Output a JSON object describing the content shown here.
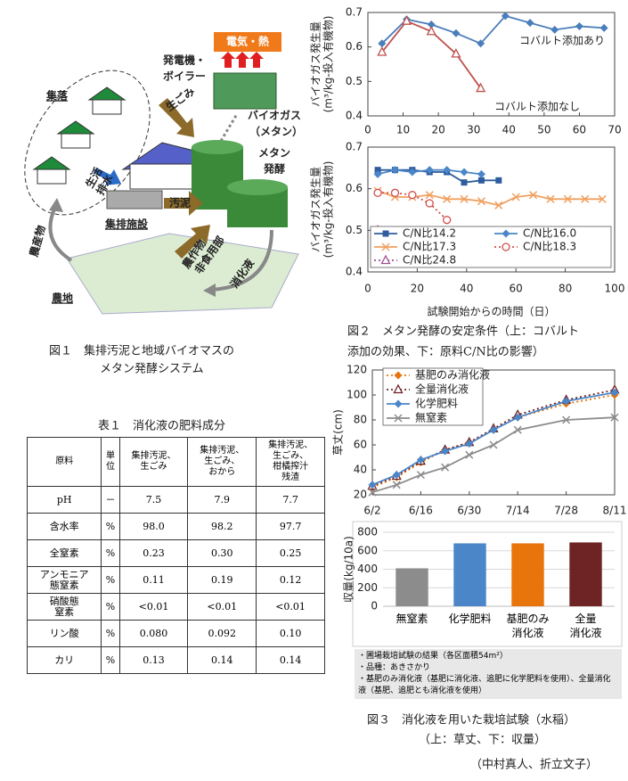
{
  "figure1": {
    "labels": [
      "集落",
      "電気・熱",
      "発電機・",
      "ボイラー",
      "生ごみ",
      "バイオガス",
      "（メタン）",
      "メタン",
      "発酵",
      "生活",
      "排水",
      "汚泥",
      "集排施設",
      "農産物",
      "農作物",
      "非食用部",
      "消化液",
      "農地"
    ],
    "caption": [
      "図１　集排汚泥と地域バイオマスの",
      "メタン発酵システム"
    ]
  },
  "table1": {
    "title": "表１　消化液の肥料成分",
    "header": [
      "原料",
      "単\n位",
      "集排汚泥、\n生ごみ",
      "集排汚泥、\n生ごみ、\nおから",
      "集排汚泥、\n生ごみ、\n柑橘搾汁\n残渣"
    ],
    "rows": [
      [
        "pH",
        "－",
        "7.5",
        "7.9",
        "7.7"
      ],
      [
        "含水率",
        "%",
        "98.0",
        "98.2",
        "97.7"
      ],
      [
        "全窒素",
        "%",
        "0.23",
        "0.30",
        "0.25"
      ],
      [
        "アンモニア\n態窒素",
        "%",
        "0.11",
        "0.19",
        "0.12"
      ],
      [
        "硝酸態\n窒素",
        "%",
        "<0.01",
        "<0.01",
        "<0.01"
      ],
      [
        "リン酸",
        "%",
        "0.080",
        "0.092",
        "0.10"
      ],
      [
        "カリ",
        "%",
        "0.13",
        "0.14",
        "0.14"
      ]
    ]
  },
  "chart_data": [
    {
      "type": "line",
      "y_label": [
        "バイオガス発生量",
        "(m³/kg-投入有機物)"
      ],
      "xlim": [
        0,
        70
      ],
      "xticks": [
        0,
        10,
        20,
        30,
        40,
        50,
        60,
        70
      ],
      "ylim": [
        0.4,
        0.7
      ],
      "yticks": [
        0.4,
        0.5,
        0.6,
        0.7
      ],
      "legend": "inline",
      "series": [
        {
          "name": "コバルト添加あり",
          "color": "#4a7ebb",
          "marker": "diamond",
          "x": [
            4,
            11,
            18,
            25,
            32,
            39,
            46,
            53,
            60,
            67
          ],
          "values": [
            0.61,
            0.68,
            0.665,
            0.64,
            0.61,
            0.69,
            0.67,
            0.65,
            0.66,
            0.655
          ]
        },
        {
          "name": "コバルト添加なし",
          "color": "#c0504d",
          "marker": "triangle-open",
          "x": [
            4,
            11,
            18,
            25,
            32
          ],
          "values": [
            0.585,
            0.675,
            0.645,
            0.58,
            0.48
          ]
        }
      ]
    },
    {
      "type": "line",
      "y_label": [
        "バイオガス発生量",
        "(m³/kg-投入有機物)"
      ],
      "x_label": "試験開始からの時間（日）",
      "xlim": [
        0,
        100
      ],
      "xticks": [
        0,
        20,
        40,
        60,
        80,
        100
      ],
      "ylim": [
        0.4,
        0.7
      ],
      "yticks": [
        0.4,
        0.5,
        0.6,
        0.7
      ],
      "legend": "lower center",
      "series": [
        {
          "name": "C/N比14.2",
          "color": "#2e5c9e",
          "marker": "square",
          "x": [
            4,
            11,
            18,
            25,
            32,
            39,
            46,
            53
          ],
          "values": [
            0.645,
            0.645,
            0.645,
            0.64,
            0.64,
            0.615,
            0.62,
            0.62
          ]
        },
        {
          "name": "C/N比16.0",
          "color": "#4a86c8",
          "marker": "diamond",
          "x": [
            4,
            11,
            18,
            25,
            32,
            39,
            46
          ],
          "values": [
            0.635,
            0.645,
            0.64,
            0.645,
            0.645,
            0.64,
            0.635
          ]
        },
        {
          "name": "C/N比17.3",
          "color": "#f0a060",
          "marker": "x",
          "x": [
            4,
            11,
            18,
            25,
            32,
            39,
            46,
            53,
            60,
            67,
            74,
            81,
            88,
            95
          ],
          "values": [
            0.595,
            0.58,
            0.58,
            0.585,
            0.575,
            0.575,
            0.57,
            0.56,
            0.58,
            0.585,
            0.575,
            0.575,
            0.575,
            0.575
          ]
        },
        {
          "name": "C/N比18.3",
          "color": "#d0504a",
          "marker": "circle-open",
          "dash": true,
          "x": [
            4,
            11,
            18,
            25,
            32
          ],
          "values": [
            0.59,
            0.59,
            0.585,
            0.565,
            0.525
          ]
        },
        {
          "name": "C/N比24.8",
          "color": "#a05090",
          "marker": "triangle-open",
          "dash": true,
          "x": [
            4
          ],
          "values": [
            0.5
          ]
        }
      ]
    },
    {
      "type": "line",
      "y_label": [
        "草丈(cm)"
      ],
      "x": [
        0,
        7,
        14,
        21,
        28,
        35,
        42,
        56,
        70
      ],
      "xlim": [
        0,
        70
      ],
      "xticks": [
        {
          "value": 0,
          "label": "6/2"
        },
        {
          "value": 14,
          "label": "6/16"
        },
        {
          "value": 28,
          "label": "6/30"
        },
        {
          "value": 42,
          "label": "7/14"
        },
        {
          "value": 56,
          "label": "7/28"
        },
        {
          "value": 70,
          "label": "8/11"
        }
      ],
      "ylim": [
        20,
        120
      ],
      "yticks": [
        20,
        40,
        60,
        80,
        100,
        120
      ],
      "legend": "upper left",
      "series": [
        {
          "name": "基肥のみ消化液",
          "color": "#e8740c",
          "marker": "diamond",
          "dash": true,
          "values": [
            26,
            34,
            46,
            56,
            62,
            72,
            82,
            93,
            100
          ]
        },
        {
          "name": "全量消化液",
          "color": "#6e2324",
          "marker": "triangle-open",
          "dash": true,
          "values": [
            27,
            35,
            47,
            56,
            62,
            73,
            84,
            96,
            104
          ]
        },
        {
          "name": "化学肥料",
          "color": "#4a86c8",
          "marker": "diamond",
          "values": [
            28,
            36,
            48,
            55,
            61,
            72,
            82,
            95,
            102
          ]
        },
        {
          "name": "無窒素",
          "color": "#8c8c8c",
          "marker": "x",
          "values": [
            22,
            28,
            36,
            42,
            52,
            60,
            72,
            80,
            82
          ]
        }
      ]
    },
    {
      "type": "bar",
      "y_label": [
        "収量(kg/10a)"
      ],
      "categories": [
        "無窒素",
        "化学肥料",
        "基肥のみ\n消化液",
        "全量\n消化液"
      ],
      "values": [
        410,
        680,
        680,
        690
      ],
      "colors": [
        "#8c8c8c",
        "#4a86c8",
        "#e8740c",
        "#6e2324"
      ],
      "ylim": [
        0,
        800
      ],
      "yticks": [
        0,
        200,
        400,
        600,
        800
      ],
      "grid": true
    }
  ],
  "figure2": {
    "caption": [
      "図２　メタン発酵の安定条件（上：コバルト",
      "添加の効果、下：原料C/N比の影響）"
    ]
  },
  "figure3": {
    "notes": [
      "・圃場栽培試験の結果（各区面積54m²）",
      "・品種：あきさかり",
      "・基肥のみ消化液（基肥に消化液、追肥に化学肥料を使用）、全量消化液（基肥、追肥とも消化液を使用）"
    ],
    "caption": [
      "図３　消化液を用いた栽培試験（水稲）",
      "（上：草丈、下：収量）"
    ]
  },
  "authors": "（中村真人、折立文子）"
}
